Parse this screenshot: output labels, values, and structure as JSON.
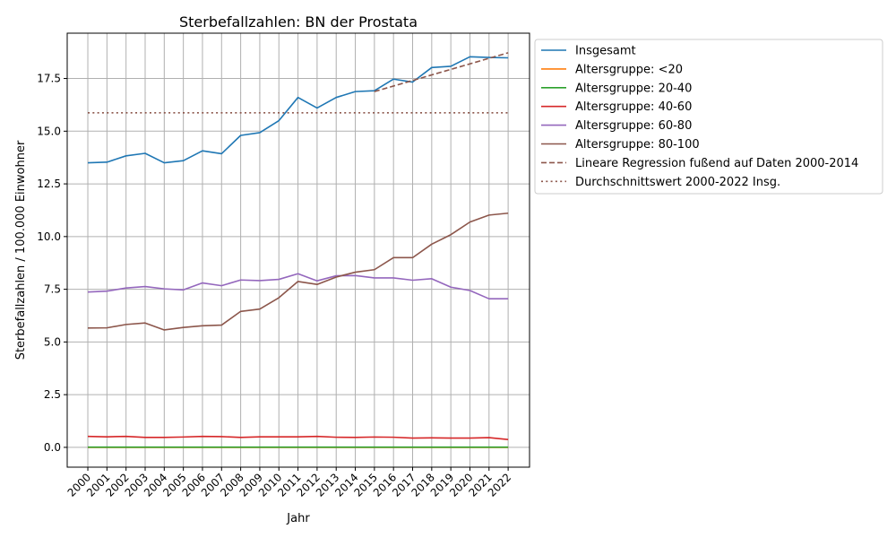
{
  "chart_data": {
    "type": "line",
    "title": "Sterbefallzahlen: BN der Prostata",
    "xlabel": "Jahr",
    "ylabel": "Sterbefallzahlen / 100.000 Einwohner",
    "xlim": [
      1998.92,
      2023.12
    ],
    "ylim": [
      -0.94,
      19.65
    ],
    "yticks": [
      0.0,
      2.5,
      5.0,
      7.5,
      10.0,
      12.5,
      15.0,
      17.5
    ],
    "ytick_labels": [
      "0.0",
      "2.5",
      "5.0",
      "7.5",
      "10.0",
      "12.5",
      "15.0",
      "17.5"
    ],
    "x": [
      2000,
      2001,
      2002,
      2003,
      2004,
      2005,
      2006,
      2007,
      2008,
      2009,
      2010,
      2011,
      2012,
      2013,
      2014,
      2015,
      2016,
      2017,
      2018,
      2019,
      2020,
      2021,
      2022
    ],
    "xtick_labels": [
      "2000",
      "2001",
      "2002",
      "2003",
      "2004",
      "2005",
      "2006",
      "2007",
      "2008",
      "2009",
      "2010",
      "2011",
      "2012",
      "2013",
      "2014",
      "2015",
      "2016",
      "2017",
      "2018",
      "2019",
      "2020",
      "2021",
      "2022"
    ],
    "grid": true,
    "legend_placement": "outside-upper-right",
    "series": [
      {
        "name": "Insgesamt",
        "color": "#1f77b4",
        "style": "solid",
        "values": [
          13.5,
          13.53,
          13.83,
          13.95,
          13.5,
          13.6,
          14.07,
          13.93,
          14.8,
          14.93,
          15.5,
          16.6,
          16.1,
          16.6,
          16.88,
          16.92,
          17.47,
          17.33,
          18.02,
          18.08,
          18.53,
          18.5,
          18.48
        ]
      },
      {
        "name": "Altersgruppe: <20",
        "color": "#ff7f0e",
        "style": "solid",
        "values": [
          0,
          0,
          0,
          0,
          0,
          0,
          0,
          0,
          0,
          0,
          0,
          0,
          0,
          0,
          0,
          0,
          0,
          0,
          0,
          0,
          0,
          0,
          0
        ]
      },
      {
        "name": "Altersgruppe: 20-40",
        "color": "#2ca02c",
        "style": "solid",
        "values": [
          0.01,
          0.01,
          0.01,
          0.01,
          0.01,
          0.01,
          0.01,
          0.01,
          0.01,
          0.01,
          0.01,
          0.01,
          0.01,
          0.01,
          0.01,
          0.01,
          0.01,
          0.01,
          0.01,
          0.01,
          0.01,
          0.01,
          0.01
        ]
      },
      {
        "name": "Altersgruppe: 40-60",
        "color": "#d62728",
        "style": "solid",
        "values": [
          0.52,
          0.5,
          0.52,
          0.47,
          0.47,
          0.49,
          0.52,
          0.51,
          0.47,
          0.5,
          0.5,
          0.5,
          0.52,
          0.48,
          0.47,
          0.49,
          0.48,
          0.44,
          0.45,
          0.44,
          0.44,
          0.46,
          0.37
        ]
      },
      {
        "name": "Altersgruppe: 60-80",
        "color": "#9467bd",
        "style": "solid",
        "values": [
          7.37,
          7.41,
          7.56,
          7.63,
          7.52,
          7.47,
          7.8,
          7.67,
          7.94,
          7.91,
          7.97,
          8.24,
          7.9,
          8.14,
          8.15,
          8.04,
          8.04,
          7.93,
          8.0,
          7.6,
          7.44,
          7.05,
          7.05
        ]
      },
      {
        "name": "Altersgruppe: 80-100",
        "color": "#8c564b",
        "style": "solid",
        "values": [
          5.66,
          5.67,
          5.83,
          5.9,
          5.57,
          5.69,
          5.77,
          5.8,
          6.45,
          6.56,
          7.1,
          7.87,
          7.73,
          8.08,
          8.31,
          8.43,
          9.0,
          9.0,
          9.64,
          10.09,
          10.69,
          11.02,
          11.11
        ]
      },
      {
        "name": "Lineare Regression fußend auf Daten 2000-2014",
        "color": "#8c564b",
        "style": "dashed",
        "x": [
          2015,
          2022
        ],
        "values": [
          16.88,
          18.72
        ]
      },
      {
        "name": "Durchschnittswert 2000-2022 Insg.",
        "color": "#8c564b",
        "style": "dotted",
        "x": [
          2000,
          2022
        ],
        "values": [
          15.87,
          15.87
        ]
      }
    ]
  }
}
